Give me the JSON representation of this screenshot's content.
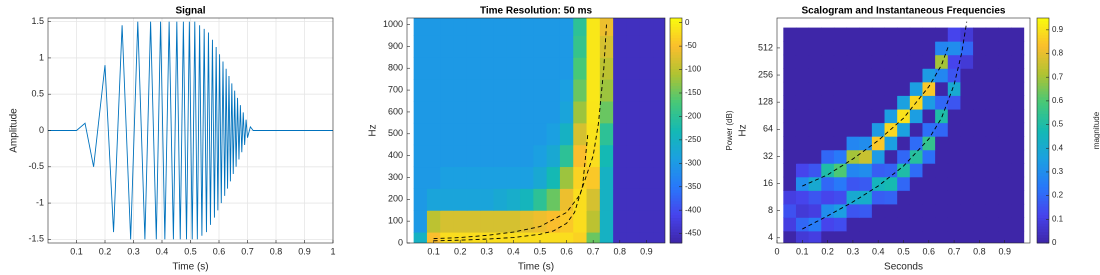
{
  "chart_data": [
    {
      "type": "line",
      "title": "Signal",
      "xlabel": "Time (s)",
      "ylabel": "Amplitude",
      "grid": true,
      "xlim": [
        0,
        1
      ],
      "xticks": [
        0.1,
        0.2,
        0.3,
        0.4,
        0.5,
        0.6,
        0.7,
        0.8,
        0.9,
        1
      ],
      "ylim": [
        -1.55,
        1.55
      ],
      "yticks": [
        -1.5,
        -1,
        -0.5,
        0,
        0.5,
        1,
        1.5
      ],
      "series": [
        {
          "color": "#0072bd",
          "x": [
            0,
            0.1,
            0.13,
            0.16,
            0.2,
            0.23,
            0.26,
            0.29,
            0.315,
            0.34,
            0.36,
            0.38,
            0.395,
            0.41,
            0.425,
            0.44,
            0.452,
            0.464,
            0.475,
            0.486,
            0.496,
            0.506,
            0.515,
            0.524,
            0.532,
            0.54,
            0.548,
            0.556,
            0.563,
            0.57,
            0.577,
            0.584,
            0.59,
            0.596,
            0.602,
            0.608,
            0.614,
            0.62,
            0.625,
            0.63,
            0.635,
            0.64,
            0.645,
            0.65,
            0.655,
            0.66,
            0.665,
            0.67,
            0.675,
            0.68,
            0.685,
            0.69,
            0.695,
            0.7,
            0.71,
            0.72,
            1
          ],
          "values": [
            0,
            0,
            0.1,
            -0.5,
            0.9,
            -1.4,
            1.45,
            -1.5,
            1.5,
            -1.5,
            1.5,
            -1.5,
            1.5,
            -1.5,
            1.5,
            -1.5,
            1.5,
            -1.5,
            1.5,
            -1.5,
            1.5,
            -1.5,
            1.5,
            -1.5,
            1.45,
            -1.45,
            1.4,
            -1.4,
            1.35,
            -1.3,
            1.25,
            -1.2,
            1.15,
            -1.1,
            1.05,
            -1,
            0.95,
            -0.9,
            0.85,
            -0.8,
            0.75,
            -0.7,
            0.65,
            -0.6,
            0.55,
            -0.5,
            0.45,
            -0.4,
            0.35,
            -0.3,
            0.25,
            -0.2,
            0.15,
            -0.1,
            0.05,
            0,
            0
          ]
        }
      ]
    },
    {
      "type": "heatmap",
      "title": "Time Resolution: 50 ms",
      "xlabel": "Time (s)",
      "ylabel": "Hz",
      "xlim": [
        0,
        0.97
      ],
      "xticks": [
        0.1,
        0.2,
        0.3,
        0.4,
        0.5,
        0.6,
        0.7,
        0.8,
        0.9
      ],
      "ylim": [
        0,
        1030
      ],
      "yticks": [
        0,
        100,
        200,
        300,
        400,
        500,
        600,
        700,
        800,
        900,
        1000
      ],
      "x": [
        0.05,
        0.1,
        0.15,
        0.2,
        0.25,
        0.3,
        0.35,
        0.4,
        0.45,
        0.5,
        0.55,
        0.6,
        0.65,
        0.7,
        0.75,
        0.8,
        0.85,
        0.9,
        0.95
      ],
      "y": [
        0,
        100,
        200,
        300,
        400,
        500,
        600,
        700,
        800,
        900,
        1000
      ],
      "z": [
        [
          -250,
          -50,
          -20,
          -20,
          -20,
          -20,
          -20,
          -20,
          -20,
          -20,
          -20,
          -20,
          -30,
          -150,
          -250,
          -450,
          -450,
          -450,
          -450
        ],
        [
          -300,
          -100,
          -80,
          -80,
          -80,
          -80,
          -80,
          -80,
          -70,
          -60,
          -50,
          -40,
          -20,
          -100,
          -250,
          -450,
          -450,
          -450,
          -450
        ],
        [
          -300,
          -280,
          -280,
          -280,
          -280,
          -280,
          -270,
          -260,
          -240,
          -200,
          -150,
          -60,
          -20,
          -80,
          -250,
          -450,
          -450,
          -450,
          -450
        ],
        [
          -300,
          -300,
          -290,
          -290,
          -290,
          -290,
          -290,
          -290,
          -290,
          -270,
          -230,
          -120,
          -30,
          -40,
          -250,
          -450,
          -450,
          -450,
          -450
        ],
        [
          -300,
          -300,
          -300,
          -300,
          -300,
          -300,
          -300,
          -300,
          -300,
          -290,
          -270,
          -200,
          -50,
          -20,
          -230,
          -450,
          -450,
          -450,
          -450
        ],
        [
          -300,
          -300,
          -300,
          -300,
          -300,
          -300,
          -300,
          -300,
          -300,
          -300,
          -290,
          -250,
          -80,
          -15,
          -200,
          -450,
          -450,
          -450,
          -450
        ],
        [
          -300,
          -300,
          -300,
          -300,
          -300,
          -300,
          -300,
          -300,
          -300,
          -300,
          -300,
          -280,
          -120,
          -12,
          -150,
          -450,
          -450,
          -450,
          -450
        ],
        [
          -300,
          -300,
          -300,
          -300,
          -300,
          -300,
          -300,
          -300,
          -300,
          -300,
          -300,
          -290,
          -150,
          -10,
          -120,
          -450,
          -450,
          -450,
          -450
        ],
        [
          -300,
          -300,
          -300,
          -300,
          -300,
          -300,
          -300,
          -300,
          -300,
          -300,
          -300,
          -300,
          -170,
          -10,
          -100,
          -450,
          -450,
          -450,
          -450
        ],
        [
          -300,
          -300,
          -300,
          -300,
          -300,
          -300,
          -300,
          -300,
          -300,
          -300,
          -300,
          -300,
          -190,
          -10,
          -80,
          -450,
          -450,
          -450,
          -450
        ],
        [
          -300,
          -300,
          -300,
          -300,
          -300,
          -300,
          -300,
          -300,
          -300,
          -300,
          -300,
          -300,
          -200,
          -10,
          -60,
          -450,
          -450,
          -450,
          -450
        ]
      ],
      "colorbar": {
        "label": "Power (dB)",
        "lim": [
          -470,
          10
        ],
        "ticks": [
          0,
          -50,
          -100,
          -150,
          -200,
          -250,
          -300,
          -350,
          -400,
          -450
        ]
      },
      "series": [
        {
          "color": "#000000",
          "x": [
            0.1,
            0.2,
            0.3,
            0.4,
            0.5,
            0.6,
            0.65,
            0.7,
            0.72,
            0.74,
            0.75
          ],
          "values": [
            20,
            25,
            35,
            50,
            75,
            140,
            220,
            400,
            550,
            800,
            1000
          ]
        },
        {
          "color": "#000000",
          "x": [
            0.1,
            0.2,
            0.3,
            0.4,
            0.5,
            0.55,
            0.6,
            0.63,
            0.66,
            0.68
          ],
          "values": [
            10,
            13,
            18,
            25,
            40,
            55,
            90,
            140,
            260,
            500
          ]
        }
      ]
    },
    {
      "type": "heatmap",
      "title": "Scalogram and Instantaneous Frequencies",
      "xlabel": "Seconds",
      "ylabel": "Hz",
      "ylog": true,
      "xlim": [
        0,
        1
      ],
      "xticks": [
        0,
        0.1,
        0.2,
        0.3,
        0.4,
        0.5,
        0.6,
        0.7,
        0.8,
        0.9
      ],
      "ylim": [
        3.5,
        1100
      ],
      "yticks": [
        4,
        8,
        16,
        32,
        64,
        128,
        256,
        512
      ],
      "x": [
        0.05,
        0.1,
        0.15,
        0.2,
        0.25,
        0.3,
        0.35,
        0.4,
        0.45,
        0.5,
        0.55,
        0.6,
        0.65,
        0.7,
        0.75,
        0.8,
        0.85,
        0.9,
        0.95
      ],
      "y": [
        4,
        5.7,
        8,
        11.3,
        16,
        22.6,
        32,
        45,
        64,
        90,
        128,
        181,
        256,
        362,
        512,
        724
      ],
      "z": [
        [
          0,
          0.08,
          0.1,
          0,
          0,
          0,
          0,
          0,
          0,
          0,
          0,
          0,
          0,
          0,
          0,
          0,
          0,
          0,
          0
        ],
        [
          0.1,
          0.2,
          0.25,
          0.12,
          0.14,
          0,
          0,
          0,
          0,
          0,
          0,
          0,
          0,
          0,
          0,
          0,
          0,
          0,
          0
        ],
        [
          0.15,
          0.08,
          0.1,
          0.3,
          0.35,
          0.16,
          0.17,
          0,
          0,
          0,
          0,
          0,
          0,
          0,
          0,
          0,
          0,
          0,
          0
        ],
        [
          0.1,
          0.12,
          0.16,
          0.12,
          0.14,
          0.4,
          0.42,
          0.18,
          0.19,
          0,
          0,
          0,
          0,
          0,
          0,
          0,
          0,
          0,
          0
        ],
        [
          0,
          0.3,
          0.4,
          0.2,
          0.24,
          0.16,
          0.17,
          0.45,
          0.48,
          0.2,
          0,
          0,
          0,
          0,
          0,
          0,
          0,
          0,
          0
        ],
        [
          0,
          0.12,
          0.16,
          0.5,
          0.6,
          0.28,
          0.3,
          0.18,
          0.19,
          0.5,
          0.21,
          0,
          0,
          0,
          0,
          0,
          0,
          0,
          0
        ],
        [
          0,
          0,
          0,
          0.2,
          0.24,
          0.7,
          0.75,
          0.34,
          0,
          0.2,
          0.52,
          0.22,
          0,
          0,
          0,
          0,
          0,
          0,
          0
        ],
        [
          0,
          0,
          0,
          0,
          0,
          0.28,
          0.3,
          0.85,
          0.35,
          0,
          0.21,
          0.55,
          0,
          0,
          0,
          0,
          0,
          0,
          0
        ],
        [
          0,
          0,
          0,
          0,
          0,
          0,
          0,
          0.34,
          0.88,
          0.36,
          0,
          0.22,
          0.2,
          0,
          0,
          0,
          0,
          0,
          0
        ],
        [
          0,
          0,
          0,
          0,
          0,
          0,
          0,
          0,
          0.35,
          0.9,
          0.35,
          0,
          0.5,
          0,
          0,
          0,
          0,
          0,
          0
        ],
        [
          0,
          0,
          0,
          0,
          0,
          0,
          0,
          0,
          0,
          0.36,
          0.88,
          0.34,
          0.2,
          0.16,
          0,
          0,
          0,
          0,
          0
        ],
        [
          0,
          0,
          0,
          0,
          0,
          0,
          0,
          0,
          0,
          0,
          0.35,
          0.85,
          0,
          0.4,
          0,
          0,
          0,
          0,
          0
        ],
        [
          0,
          0,
          0,
          0,
          0,
          0,
          0,
          0,
          0,
          0,
          0,
          0.34,
          0.28,
          0.16,
          0,
          0,
          0,
          0,
          0
        ],
        [
          0,
          0,
          0,
          0,
          0,
          0,
          0,
          0,
          0,
          0,
          0,
          0,
          0.7,
          0.12,
          0.08,
          0,
          0,
          0,
          0
        ],
        [
          0,
          0,
          0,
          0,
          0,
          0,
          0,
          0,
          0,
          0,
          0,
          0,
          0.28,
          0.3,
          0.2,
          0,
          0,
          0,
          0
        ],
        [
          0,
          0,
          0,
          0,
          0,
          0,
          0,
          0,
          0,
          0,
          0,
          0,
          0,
          0.12,
          0.08,
          0,
          0,
          0,
          0
        ]
      ],
      "colorbar": {
        "label": "magnitude",
        "lim": [
          0,
          0.95
        ],
        "ticks": [
          0,
          0.1,
          0.2,
          0.3,
          0.4,
          0.5,
          0.6,
          0.7,
          0.8,
          0.9
        ]
      },
      "series": [
        {
          "color": "#000000",
          "x": [
            0.1,
            0.2,
            0.3,
            0.4,
            0.5,
            0.6,
            0.65,
            0.68
          ],
          "values": [
            15,
            20,
            30,
            48,
            85,
            190,
            330,
            560
          ]
        },
        {
          "color": "#000000",
          "x": [
            0.1,
            0.2,
            0.3,
            0.4,
            0.5,
            0.6,
            0.65,
            0.7,
            0.73,
            0.75
          ],
          "values": [
            5,
            7,
            10,
            15,
            25,
            50,
            85,
            200,
            450,
            1000
          ]
        }
      ]
    }
  ]
}
